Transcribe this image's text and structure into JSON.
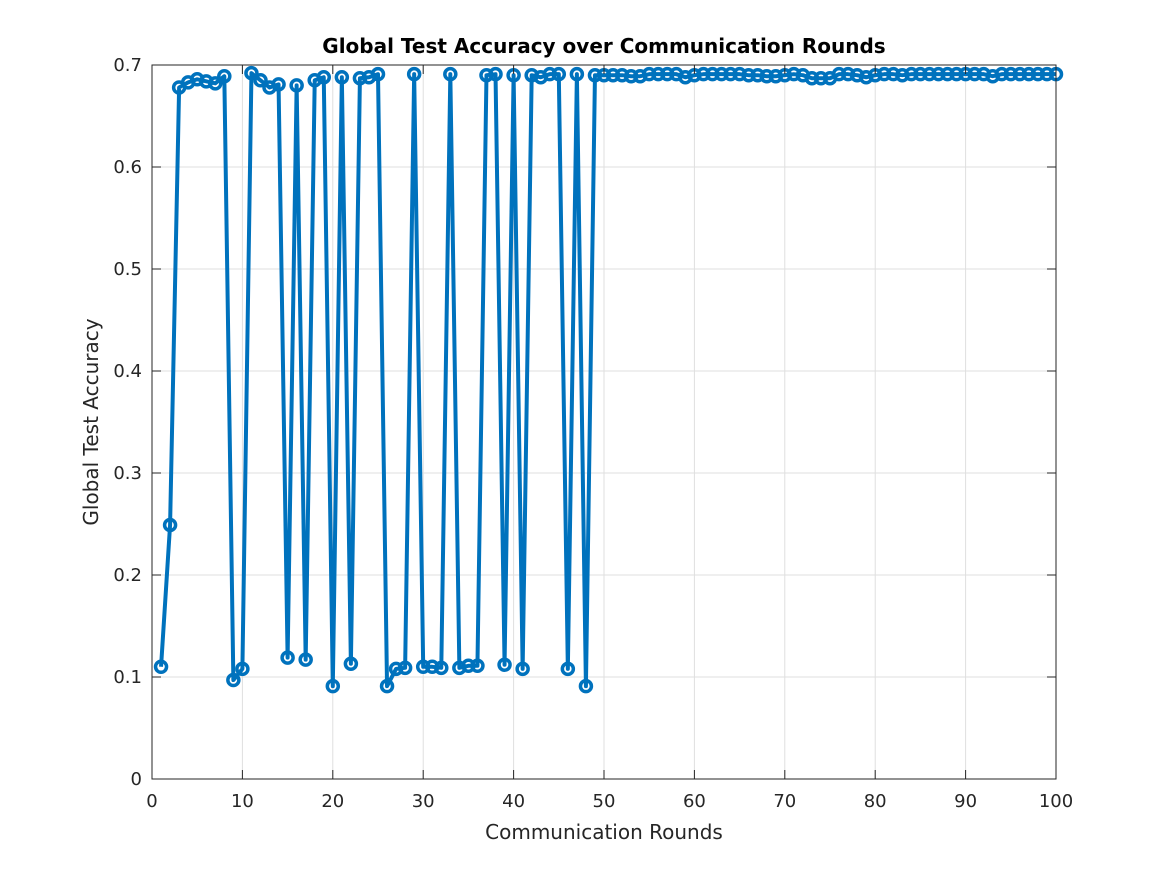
{
  "chart_data": {
    "type": "line",
    "title": "Global Test Accuracy over Communication Rounds",
    "xlabel": "Communication Rounds",
    "ylabel": "Global Test Accuracy",
    "xlim": [
      0,
      100
    ],
    "ylim": [
      0,
      0.7
    ],
    "xticks": [
      0,
      10,
      20,
      30,
      40,
      50,
      60,
      70,
      80,
      90,
      100
    ],
    "yticks": [
      0,
      0.1,
      0.2,
      0.3,
      0.4,
      0.5,
      0.6,
      0.7
    ],
    "grid": true,
    "marker": "circle",
    "color": "#0072BD",
    "x": [
      1,
      2,
      3,
      4,
      5,
      6,
      7,
      8,
      9,
      10,
      11,
      12,
      13,
      14,
      15,
      16,
      17,
      18,
      19,
      20,
      21,
      22,
      23,
      24,
      25,
      26,
      27,
      28,
      29,
      30,
      31,
      32,
      33,
      34,
      35,
      36,
      37,
      38,
      39,
      40,
      41,
      42,
      43,
      44,
      45,
      46,
      47,
      48,
      49,
      50,
      51,
      52,
      53,
      54,
      55,
      56,
      57,
      58,
      59,
      60,
      61,
      62,
      63,
      64,
      65,
      66,
      67,
      68,
      69,
      70,
      71,
      72,
      73,
      74,
      75,
      76,
      77,
      78,
      79,
      80,
      81,
      82,
      83,
      84,
      85,
      86,
      87,
      88,
      89,
      90,
      91,
      92,
      93,
      94,
      95,
      96,
      97,
      98,
      99,
      100
    ],
    "y": [
      0.11,
      0.249,
      0.678,
      0.683,
      0.686,
      0.684,
      0.682,
      0.689,
      0.097,
      0.108,
      0.692,
      0.685,
      0.678,
      0.681,
      0.119,
      0.68,
      0.117,
      0.685,
      0.688,
      0.091,
      0.688,
      0.113,
      0.687,
      0.688,
      0.691,
      0.091,
      0.108,
      0.109,
      0.691,
      0.11,
      0.11,
      0.109,
      0.691,
      0.109,
      0.111,
      0.111,
      0.69,
      0.691,
      0.112,
      0.69,
      0.108,
      0.69,
      0.688,
      0.691,
      0.691,
      0.108,
      0.691,
      0.091,
      0.69,
      0.69,
      0.69,
      0.69,
      0.689,
      0.689,
      0.691,
      0.691,
      0.691,
      0.691,
      0.688,
      0.69,
      0.691,
      0.691,
      0.691,
      0.691,
      0.691,
      0.69,
      0.69,
      0.689,
      0.689,
      0.69,
      0.691,
      0.69,
      0.687,
      0.687,
      0.687,
      0.691,
      0.691,
      0.69,
      0.688,
      0.69,
      0.691,
      0.691,
      0.69,
      0.691,
      0.691,
      0.691,
      0.691,
      0.691,
      0.691,
      0.691,
      0.691,
      0.691,
      0.689,
      0.691,
      0.691,
      0.691,
      0.691,
      0.691,
      0.691,
      0.691
    ]
  }
}
